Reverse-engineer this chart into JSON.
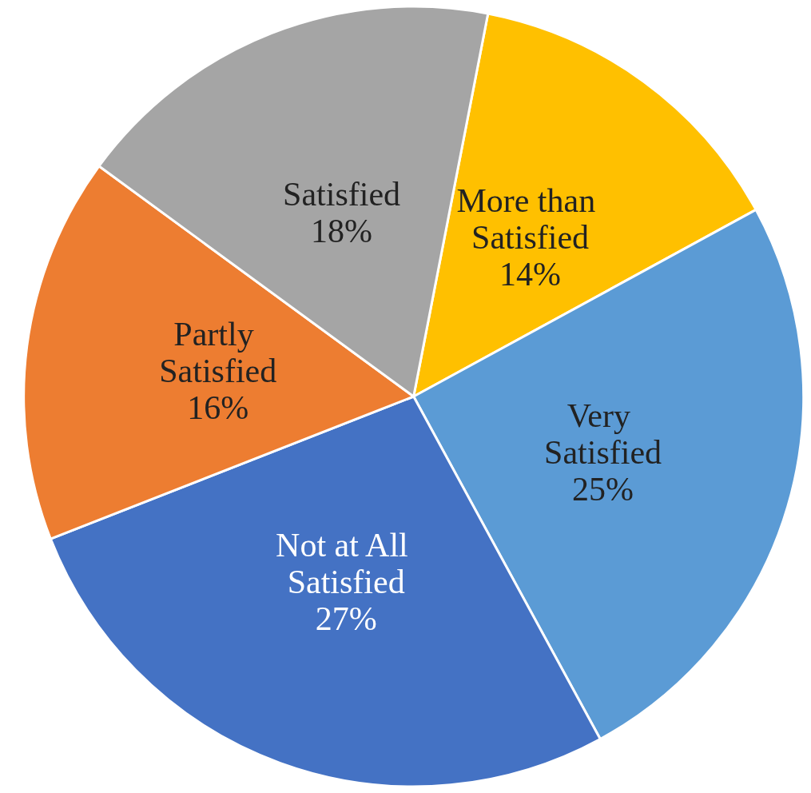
{
  "chart_data": {
    "type": "pie",
    "categories": [
      "More than Satisfied",
      "Very Satisfied",
      "Not at All Satisfied",
      "Partly Satisfied",
      "Satisfied"
    ],
    "values": [
      14,
      25,
      27,
      16,
      18
    ],
    "colors": [
      "#ffc000",
      "#5b9bd5",
      "#4472c4",
      "#ed7d31",
      "#a5a5a5"
    ],
    "value_labels": [
      "14%",
      "25%",
      "27%",
      "16%",
      "18%"
    ],
    "legend": false
  }
}
